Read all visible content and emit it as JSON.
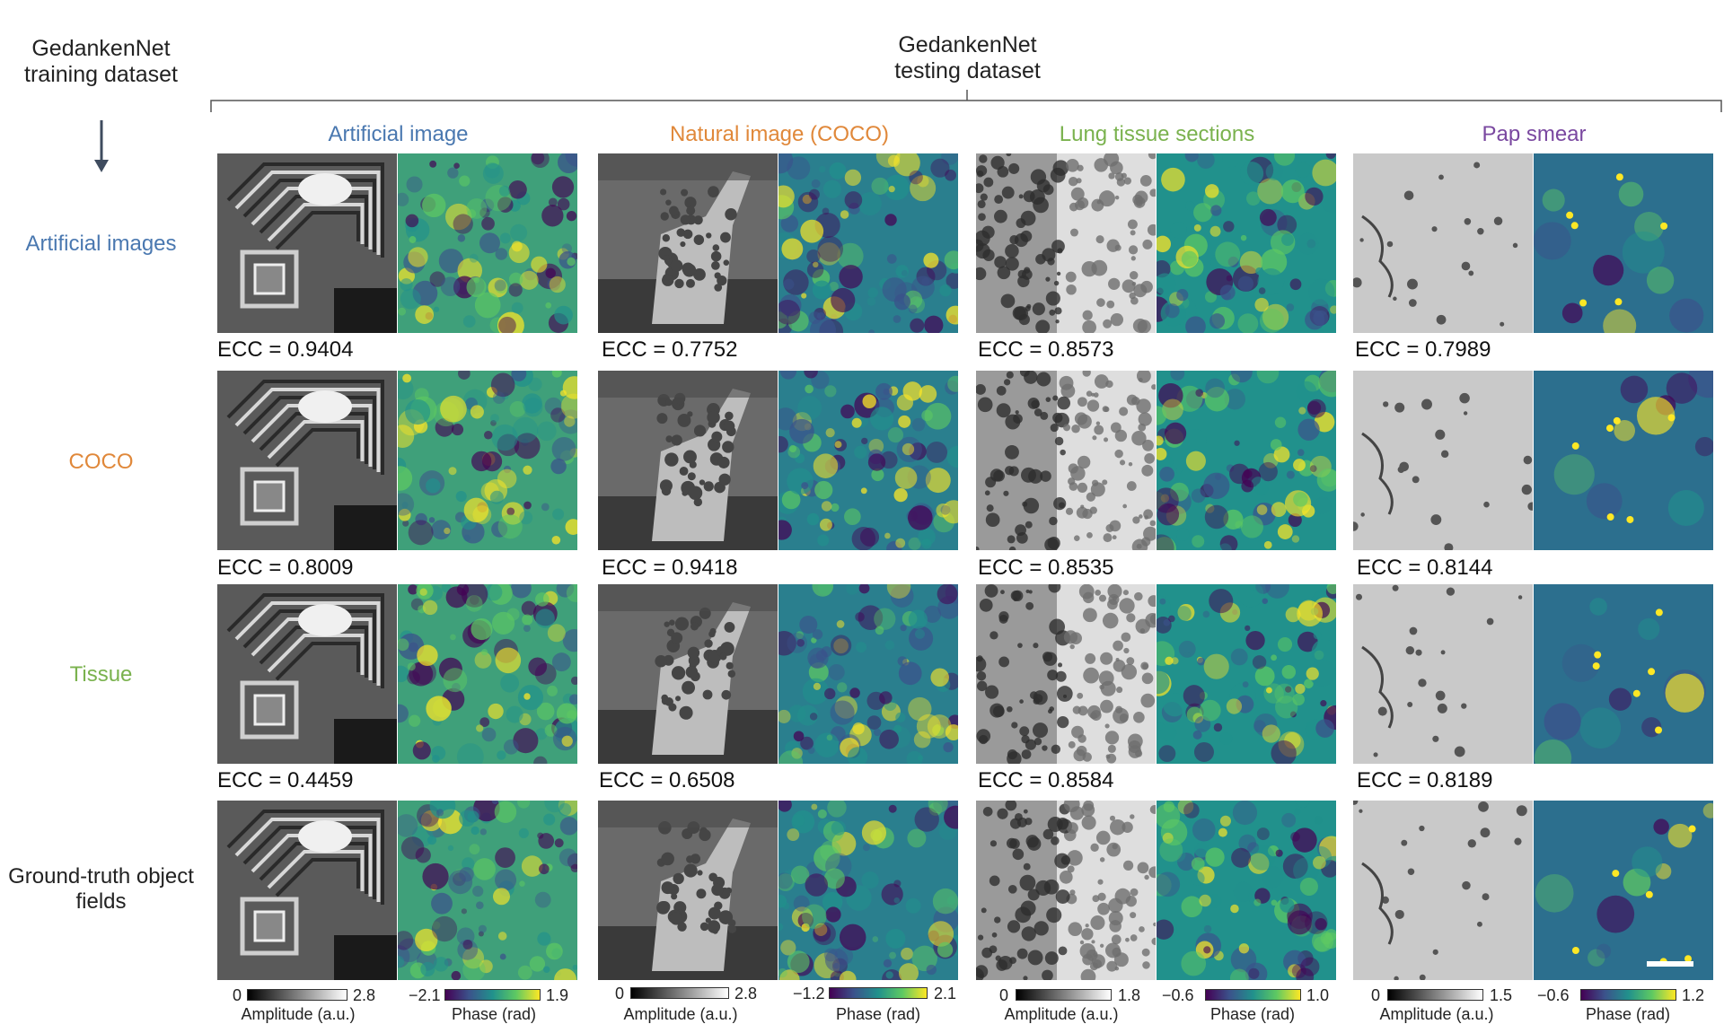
{
  "header": {
    "training_title": "GedankenNet\ntraining dataset",
    "testing_title": "GedankenNet\ntesting dataset"
  },
  "columns": [
    {
      "label": "Artificial image",
      "color": "#4a78b0"
    },
    {
      "label": "Natural image (COCO)",
      "color": "#e0883a"
    },
    {
      "label": "Lung tissue sections",
      "color": "#7ab24e"
    },
    {
      "label": "Pap smear",
      "color": "#7a48a0"
    }
  ],
  "rows": [
    {
      "label": "Artificial images",
      "color": "#4a78b0",
      "ecc": [
        "ECC = 0.9404",
        "ECC = 0.7752",
        "ECC = 0.8573",
        "ECC = 0.7989"
      ]
    },
    {
      "label": "COCO",
      "color": "#e0883a",
      "ecc": [
        "ECC = 0.8009",
        "ECC = 0.9418",
        "ECC = 0.8535",
        "ECC = 0.8144"
      ]
    },
    {
      "label": "Tissue",
      "color": "#7ab24e",
      "ecc": [
        "ECC = 0.4459",
        "ECC = 0.6508",
        "ECC = 0.8584",
        "ECC = 0.8189"
      ]
    },
    {
      "label": "Ground-truth object\nfields",
      "color": "#222222",
      "ecc": []
    }
  ],
  "colorbars": [
    {
      "amp_min": "0",
      "amp_max": "2.8",
      "amp_label": "Amplitude (a.u.)",
      "phase_min": "−2.1",
      "phase_max": "1.9",
      "phase_label": "Phase (rad)"
    },
    {
      "amp_min": "0",
      "amp_max": "2.8",
      "amp_label": "Amplitude (a.u.)",
      "phase_min": "−1.2",
      "phase_max": "2.1",
      "phase_label": "Phase (rad)"
    },
    {
      "amp_min": "0",
      "amp_max": "1.8",
      "amp_label": "Amplitude (a.u.)",
      "phase_min": "−0.6",
      "phase_max": "1.0",
      "phase_label": "Phase (rad)"
    },
    {
      "amp_min": "0",
      "amp_max": "1.5",
      "amp_label": "Amplitude (a.u.)",
      "phase_min": "−0.6",
      "phase_max": "1.2",
      "phase_label": "Phase (rad)"
    }
  ],
  "colormaps": {
    "amplitude": [
      "#000000",
      "#ffffff"
    ],
    "phase": [
      "#440154",
      "#3b528b",
      "#21918c",
      "#5ec962",
      "#fde725"
    ]
  }
}
